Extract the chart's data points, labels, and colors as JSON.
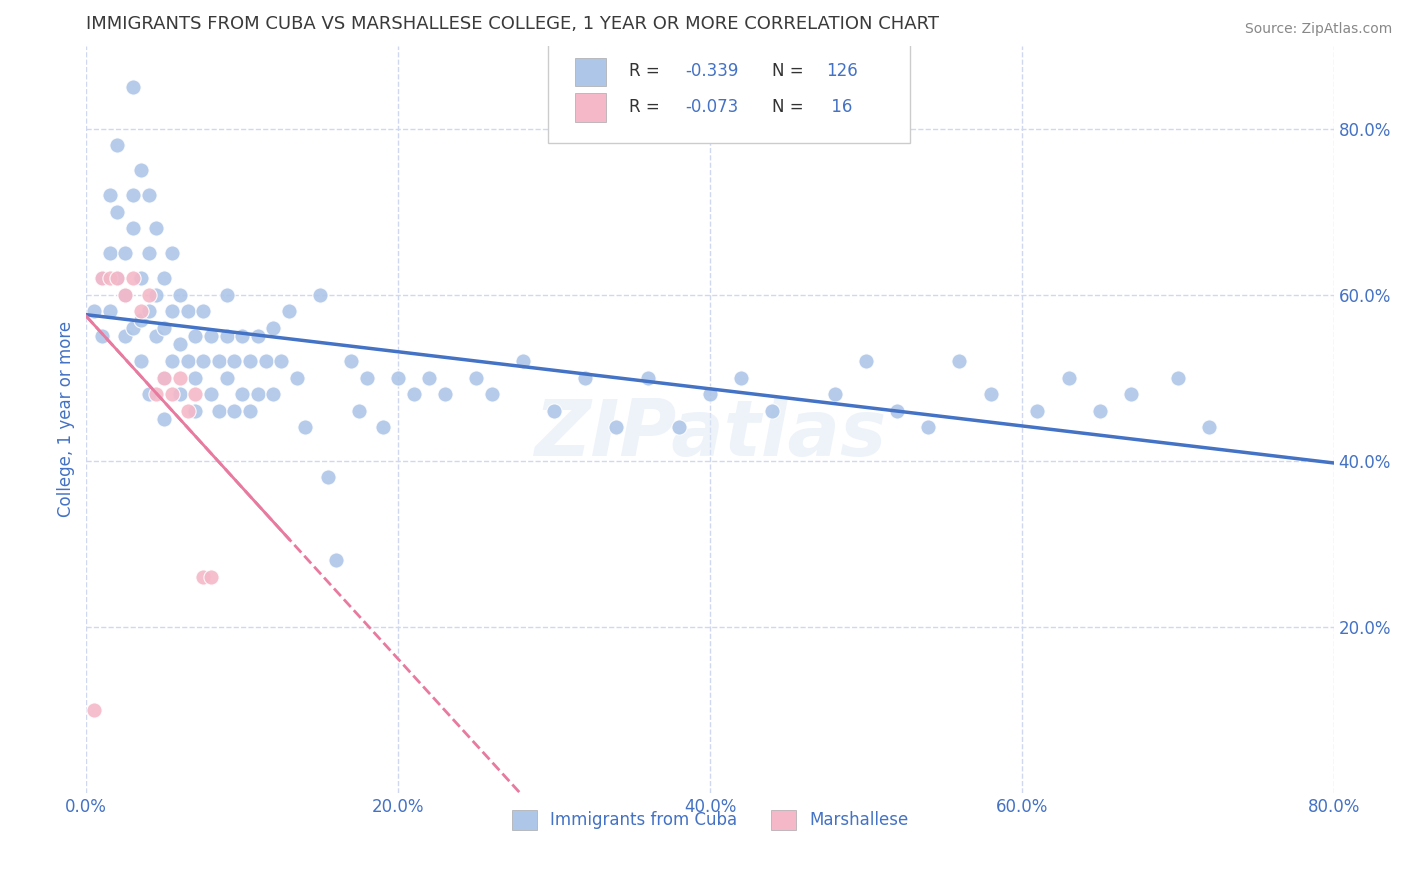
{
  "title": "IMMIGRANTS FROM CUBA VS MARSHALLESE COLLEGE, 1 YEAR OR MORE CORRELATION CHART",
  "source_text": "Source: ZipAtlas.com",
  "ylabel": "College, 1 year or more",
  "xlim": [
    0.0,
    0.8
  ],
  "ylim": [
    0.0,
    0.9
  ],
  "xtick_labels": [
    "0.0%",
    "20.0%",
    "40.0%",
    "60.0%",
    "80.0%"
  ],
  "xtick_values": [
    0.0,
    0.2,
    0.4,
    0.6,
    0.8
  ],
  "ytick_labels": [
    "20.0%",
    "40.0%",
    "60.0%",
    "80.0%"
  ],
  "ytick_values": [
    0.2,
    0.4,
    0.6,
    0.8
  ],
  "legend_labels": [
    "Immigrants from Cuba",
    "Marshallese"
  ],
  "cuba_color": "#aec6e8",
  "marsh_color": "#f4b8c8",
  "cuba_line_color": "#4472c4",
  "marsh_line_color": "#e87a9f",
  "watermark": "ZIPatlas",
  "title_color": "#3a3a3a",
  "axis_color": "#4472c4",
  "grid_color": "#d0d8f0",
  "cuba_scatter_x": [
    0.005,
    0.01,
    0.01,
    0.015,
    0.015,
    0.015,
    0.02,
    0.02,
    0.02,
    0.025,
    0.025,
    0.025,
    0.03,
    0.03,
    0.03,
    0.03,
    0.035,
    0.035,
    0.035,
    0.035,
    0.04,
    0.04,
    0.04,
    0.04,
    0.045,
    0.045,
    0.045,
    0.05,
    0.05,
    0.05,
    0.05,
    0.055,
    0.055,
    0.055,
    0.06,
    0.06,
    0.06,
    0.065,
    0.065,
    0.07,
    0.07,
    0.07,
    0.075,
    0.075,
    0.08,
    0.08,
    0.085,
    0.085,
    0.09,
    0.09,
    0.09,
    0.095,
    0.095,
    0.1,
    0.1,
    0.105,
    0.105,
    0.11,
    0.11,
    0.115,
    0.12,
    0.12,
    0.125,
    0.13,
    0.135,
    0.14,
    0.15,
    0.155,
    0.16,
    0.17,
    0.175,
    0.18,
    0.19,
    0.2,
    0.21,
    0.22,
    0.23,
    0.25,
    0.26,
    0.28,
    0.3,
    0.32,
    0.34,
    0.36,
    0.38,
    0.4,
    0.42,
    0.44,
    0.48,
    0.5,
    0.52,
    0.54,
    0.56,
    0.58,
    0.61,
    0.63,
    0.65,
    0.67,
    0.7,
    0.72
  ],
  "cuba_scatter_y": [
    0.58,
    0.62,
    0.55,
    0.72,
    0.65,
    0.58,
    0.78,
    0.7,
    0.62,
    0.55,
    0.65,
    0.6,
    0.56,
    0.72,
    0.85,
    0.68,
    0.62,
    0.57,
    0.52,
    0.75,
    0.48,
    0.72,
    0.65,
    0.58,
    0.6,
    0.55,
    0.68,
    0.62,
    0.56,
    0.5,
    0.45,
    0.65,
    0.58,
    0.52,
    0.6,
    0.54,
    0.48,
    0.58,
    0.52,
    0.46,
    0.55,
    0.5,
    0.58,
    0.52,
    0.55,
    0.48,
    0.52,
    0.46,
    0.6,
    0.55,
    0.5,
    0.52,
    0.46,
    0.55,
    0.48,
    0.52,
    0.46,
    0.55,
    0.48,
    0.52,
    0.56,
    0.48,
    0.52,
    0.58,
    0.5,
    0.44,
    0.6,
    0.38,
    0.28,
    0.52,
    0.46,
    0.5,
    0.44,
    0.5,
    0.48,
    0.5,
    0.48,
    0.5,
    0.48,
    0.52,
    0.46,
    0.5,
    0.44,
    0.5,
    0.44,
    0.48,
    0.5,
    0.46,
    0.48,
    0.52,
    0.46,
    0.44,
    0.52,
    0.48,
    0.46,
    0.5,
    0.46,
    0.48,
    0.5,
    0.44
  ],
  "marsh_scatter_x": [
    0.005,
    0.01,
    0.015,
    0.02,
    0.025,
    0.03,
    0.035,
    0.04,
    0.045,
    0.05,
    0.055,
    0.06,
    0.065,
    0.07,
    0.075,
    0.08
  ],
  "marsh_scatter_y": [
    0.1,
    0.62,
    0.62,
    0.62,
    0.6,
    0.62,
    0.58,
    0.6,
    0.48,
    0.5,
    0.48,
    0.5,
    0.46,
    0.48,
    0.26,
    0.26
  ]
}
